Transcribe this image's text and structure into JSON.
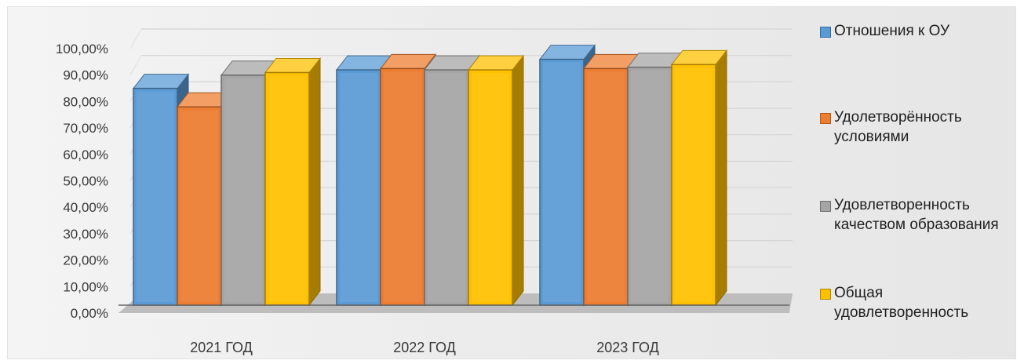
{
  "chart_data": {
    "type": "bar",
    "categories": [
      "2021 ГОД",
      "2022 ГОД",
      "2023 ГОД"
    ],
    "series": [
      {
        "name": "Отношения к ОУ",
        "values": [
          82.0,
          89.0,
          93.0
        ],
        "color": "#5b9bd5"
      },
      {
        "name": "Удолетворённость условиями",
        "values": [
          75.0,
          89.5,
          89.5
        ],
        "color": "#ed7d31"
      },
      {
        "name": "Удовлетворенность качеством образования",
        "values": [
          87.0,
          89.0,
          90.0
        ],
        "color": "#a5a5a5"
      },
      {
        "name": "Общая удовлетворенность",
        "values": [
          88.0,
          89.0,
          91.0
        ],
        "color": "#ffc000"
      }
    ],
    "y_ticks": [
      "0,00%",
      "10,00%",
      "20,00%",
      "30,00%",
      "40,00%",
      "50,00%",
      "60,00%",
      "70,00%",
      "80,00%",
      "90,00%",
      "100,00%"
    ],
    "ylim": [
      0,
      100
    ],
    "grid": true,
    "legend_position": "right",
    "title": "",
    "xlabel": "",
    "ylabel": ""
  },
  "legend": {
    "items": [
      {
        "label": "Отношения к ОУ",
        "color": "#5b9bd5"
      },
      {
        "label": "Удолетворённость условиями",
        "color": "#ed7d31"
      },
      {
        "label": "Удовлетворенность качеством образования",
        "color": "#a5a5a5"
      },
      {
        "label": "Общая удовлетворенность",
        "color": "#ffc000"
      }
    ]
  }
}
